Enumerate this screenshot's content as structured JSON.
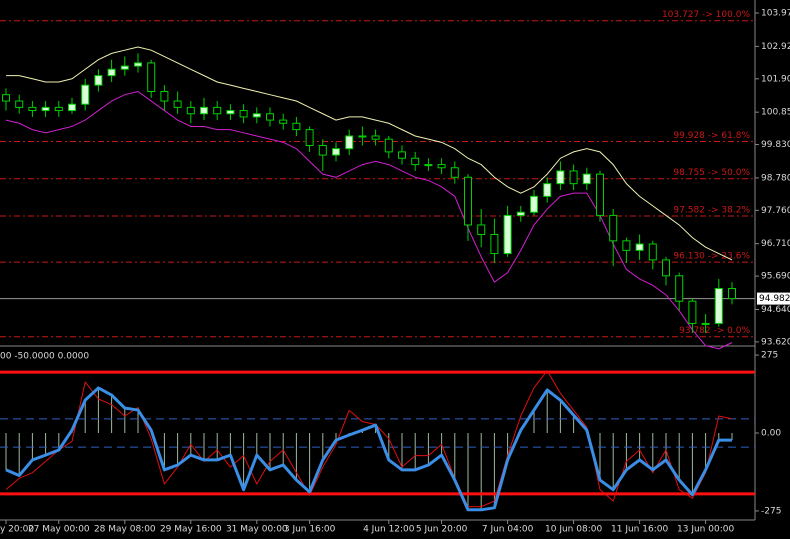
{
  "chart_data": [
    {
      "type": "candlestick",
      "categories": [
        "y 20:00",
        null,
        null,
        null,
        "27 May 00:00",
        null,
        null,
        null,
        null,
        "28 May 08:00",
        null,
        null,
        null,
        null,
        "29 May 16:00",
        null,
        null,
        null,
        null,
        "31 May 00:00",
        null,
        null,
        null,
        "3 Jun 16:00",
        null,
        null,
        null,
        null,
        null,
        "4 Jun 12:00",
        null,
        null,
        null,
        "5 Jun 20:00",
        null,
        null,
        null,
        null,
        "7 Jun 04:00",
        null,
        null,
        null,
        null,
        "10 Jun 08:00",
        null,
        null,
        null,
        null,
        "11 Jun 16:00",
        null,
        null,
        null,
        null,
        "13 Jun 00:00",
        null,
        null
      ],
      "open": [
        101.4,
        101.2,
        101.0,
        100.9,
        101.0,
        100.9,
        101.1,
        101.7,
        102.0,
        102.2,
        102.3,
        102.4,
        101.5,
        101.2,
        101.0,
        100.8,
        101.0,
        100.8,
        100.9,
        100.7,
        100.8,
        100.6,
        100.5,
        100.3,
        99.8,
        99.5,
        99.7,
        100.1,
        100.1,
        100.0,
        99.6,
        99.4,
        99.2,
        99.2,
        99.1,
        98.8,
        97.3,
        97.0,
        96.4,
        97.6,
        97.7,
        98.2,
        98.6,
        99.0,
        98.6,
        98.9,
        97.6,
        96.8,
        96.5,
        96.7,
        96.2,
        95.7,
        94.9,
        94.2,
        94.2,
        95.3
      ],
      "high": [
        101.6,
        101.4,
        101.2,
        101.2,
        101.2,
        101.3,
        101.9,
        102.2,
        102.5,
        102.6,
        102.7,
        102.5,
        101.7,
        101.5,
        101.2,
        101.3,
        101.2,
        101.1,
        101.1,
        101.0,
        101.0,
        100.8,
        100.7,
        100.4,
        100.0,
        99.9,
        100.3,
        100.4,
        100.3,
        100.1,
        99.8,
        99.6,
        99.4,
        99.4,
        99.3,
        98.9,
        97.8,
        97.5,
        97.9,
        97.9,
        98.4,
        98.8,
        99.3,
        99.2,
        99.1,
        99.0,
        97.8,
        96.9,
        97.0,
        96.8,
        96.3,
        95.8,
        95.0,
        94.5,
        95.6,
        95.5
      ],
      "low": [
        100.9,
        100.8,
        100.7,
        100.7,
        100.7,
        100.8,
        100.9,
        101.5,
        101.8,
        102.0,
        102.1,
        101.3,
        100.9,
        100.8,
        100.5,
        100.6,
        100.6,
        100.6,
        100.5,
        100.5,
        100.4,
        100.3,
        100.1,
        99.6,
        99.0,
        99.3,
        99.5,
        99.8,
        99.8,
        99.4,
        99.2,
        99.0,
        99.0,
        98.9,
        98.6,
        96.8,
        96.6,
        96.1,
        96.3,
        97.4,
        97.6,
        98.0,
        98.4,
        98.4,
        98.4,
        97.4,
        96.0,
        96.1,
        96.2,
        95.9,
        95.4,
        94.6,
        93.9,
        93.9,
        94.1,
        94.8
      ],
      "close": [
        101.2,
        101.0,
        100.9,
        101.0,
        100.9,
        101.1,
        101.7,
        102.0,
        102.2,
        102.3,
        102.4,
        101.5,
        101.2,
        101.0,
        100.8,
        101.0,
        100.8,
        100.9,
        100.7,
        100.8,
        100.6,
        100.5,
        100.3,
        99.8,
        99.5,
        99.7,
        100.1,
        100.1,
        100.0,
        99.6,
        99.4,
        99.2,
        99.2,
        99.1,
        98.8,
        97.3,
        97.0,
        96.4,
        97.6,
        97.7,
        98.2,
        98.6,
        99.0,
        98.6,
        98.9,
        97.6,
        96.8,
        96.5,
        96.7,
        96.2,
        95.7,
        94.9,
        94.2,
        94.2,
        95.3,
        94.982
      ],
      "up_color": "#d8ffd8",
      "down_color": "#000000",
      "wick_color": "#00d000",
      "series": [
        {
          "color": "#f0f0b0",
          "values": [
            102.0,
            102.0,
            101.9,
            101.8,
            101.8,
            101.9,
            102.2,
            102.5,
            102.7,
            102.8,
            102.9,
            102.8,
            102.6,
            102.4,
            102.2,
            102.0,
            101.8,
            101.7,
            101.6,
            101.5,
            101.4,
            101.3,
            101.2,
            101.0,
            100.8,
            100.6,
            100.7,
            100.7,
            100.6,
            100.5,
            100.3,
            100.1,
            100.0,
            99.9,
            99.7,
            99.4,
            99.2,
            98.8,
            98.5,
            98.3,
            98.5,
            98.9,
            99.4,
            99.6,
            99.7,
            99.6,
            99.2,
            98.6,
            98.2,
            97.9,
            97.6,
            97.3,
            96.9,
            96.6,
            96.4,
            96.2
          ]
        },
        {
          "color": "#d020d0",
          "values": [
            100.6,
            100.5,
            100.3,
            100.2,
            100.3,
            100.4,
            100.6,
            100.9,
            101.2,
            101.4,
            101.5,
            101.2,
            100.9,
            100.6,
            100.4,
            100.4,
            100.3,
            100.3,
            100.2,
            100.1,
            100.0,
            99.9,
            99.7,
            99.3,
            98.9,
            98.8,
            99.0,
            99.2,
            99.3,
            99.2,
            99.0,
            98.8,
            98.7,
            98.5,
            98.2,
            97.2,
            96.3,
            95.5,
            95.8,
            96.5,
            97.3,
            97.8,
            98.2,
            98.3,
            98.3,
            97.6,
            96.7,
            95.9,
            95.6,
            95.4,
            95.1,
            94.6,
            94.0,
            93.5,
            93.4,
            93.6
          ]
        }
      ],
      "levels": [
        {
          "value": 103.727,
          "label": "103.727 -> 100.0%"
        },
        {
          "value": 99.928,
          "label": "99.928 -> 61.8%"
        },
        {
          "value": 98.755,
          "label": "98.755 -> 50.0%"
        },
        {
          "value": 97.582,
          "label": "97.582 -> 38.2%"
        },
        {
          "value": 96.13,
          "label": "96.130 -> 23.6%"
        },
        {
          "value": 93.782,
          "label": "93.782 -> 0.0%"
        }
      ],
      "level_color": "#c81818",
      "last_price": 94.982,
      "ylim": [
        93.49,
        104.38
      ],
      "yticks": [
        {
          "value": 103.97,
          "label": "103.970"
        },
        {
          "value": 102.92,
          "label": "102.920"
        },
        {
          "value": 101.9,
          "label": "101.900"
        },
        {
          "value": 100.85,
          "label": "100.850"
        },
        {
          "value": 99.83,
          "label": "99.830"
        },
        {
          "value": 98.78,
          "label": "98.780"
        },
        {
          "value": 97.76,
          "label": "97.760"
        },
        {
          "value": 96.71,
          "label": "96.710"
        },
        {
          "value": 95.69,
          "label": "95.690"
        },
        {
          "value": 94.64,
          "label": "94.640"
        },
        {
          "value": 93.62,
          "label": "93.620"
        }
      ]
    },
    {
      "type": "line",
      "header": "00 -50.0000 0.0000",
      "histogram_color": "#9fb89f",
      "series": [
        {
          "color": "#3a8ee6",
          "width": 3,
          "histogram": true,
          "values": [
            -130,
            -150,
            -95,
            -78,
            -60,
            10,
            116,
            159,
            134,
            88,
            81,
            10,
            -130,
            -113,
            -78,
            -95,
            -95,
            -78,
            -200,
            -78,
            -130,
            -113,
            -166,
            -208,
            -95,
            -25,
            -7,
            10,
            28,
            -95,
            -130,
            -130,
            -113,
            -78,
            -166,
            -271,
            -271,
            -264,
            -95,
            10,
            81,
            152,
            116,
            63,
            10,
            -166,
            -200,
            -130,
            -95,
            -130,
            -95,
            -166,
            -218,
            -130,
            -25,
            -25
          ]
        },
        {
          "color": "#e01010",
          "width": 1,
          "histogram": false,
          "values": [
            -200,
            -160,
            -140,
            -100,
            -60,
            -30,
            180,
            120,
            100,
            60,
            90,
            -20,
            -180,
            -120,
            -40,
            -100,
            -60,
            -120,
            -80,
            -180,
            -100,
            -60,
            -140,
            -220,
            -120,
            -40,
            80,
            40,
            30,
            -20,
            -120,
            -80,
            -80,
            -40,
            -160,
            -260,
            -260,
            -240,
            -80,
            60,
            160,
            220,
            140,
            80,
            20,
            -200,
            -240,
            -100,
            -60,
            -140,
            -60,
            -200,
            -230,
            -140,
            60,
            50
          ]
        }
      ],
      "levels": [
        {
          "value": 215,
          "color": "#ff1010",
          "style": "solid"
        },
        {
          "value": -215,
          "color": "#ff1010",
          "style": "solid"
        },
        {
          "value": 50,
          "color": "#3060c0",
          "style": "dashed"
        },
        {
          "value": -50,
          "color": "#3060c0",
          "style": "dashed"
        }
      ],
      "ylim": [
        -307,
        300
      ],
      "yticks": [
        275,
        {
          "value": 0,
          "label": "0.00"
        },
        -275
      ]
    }
  ]
}
